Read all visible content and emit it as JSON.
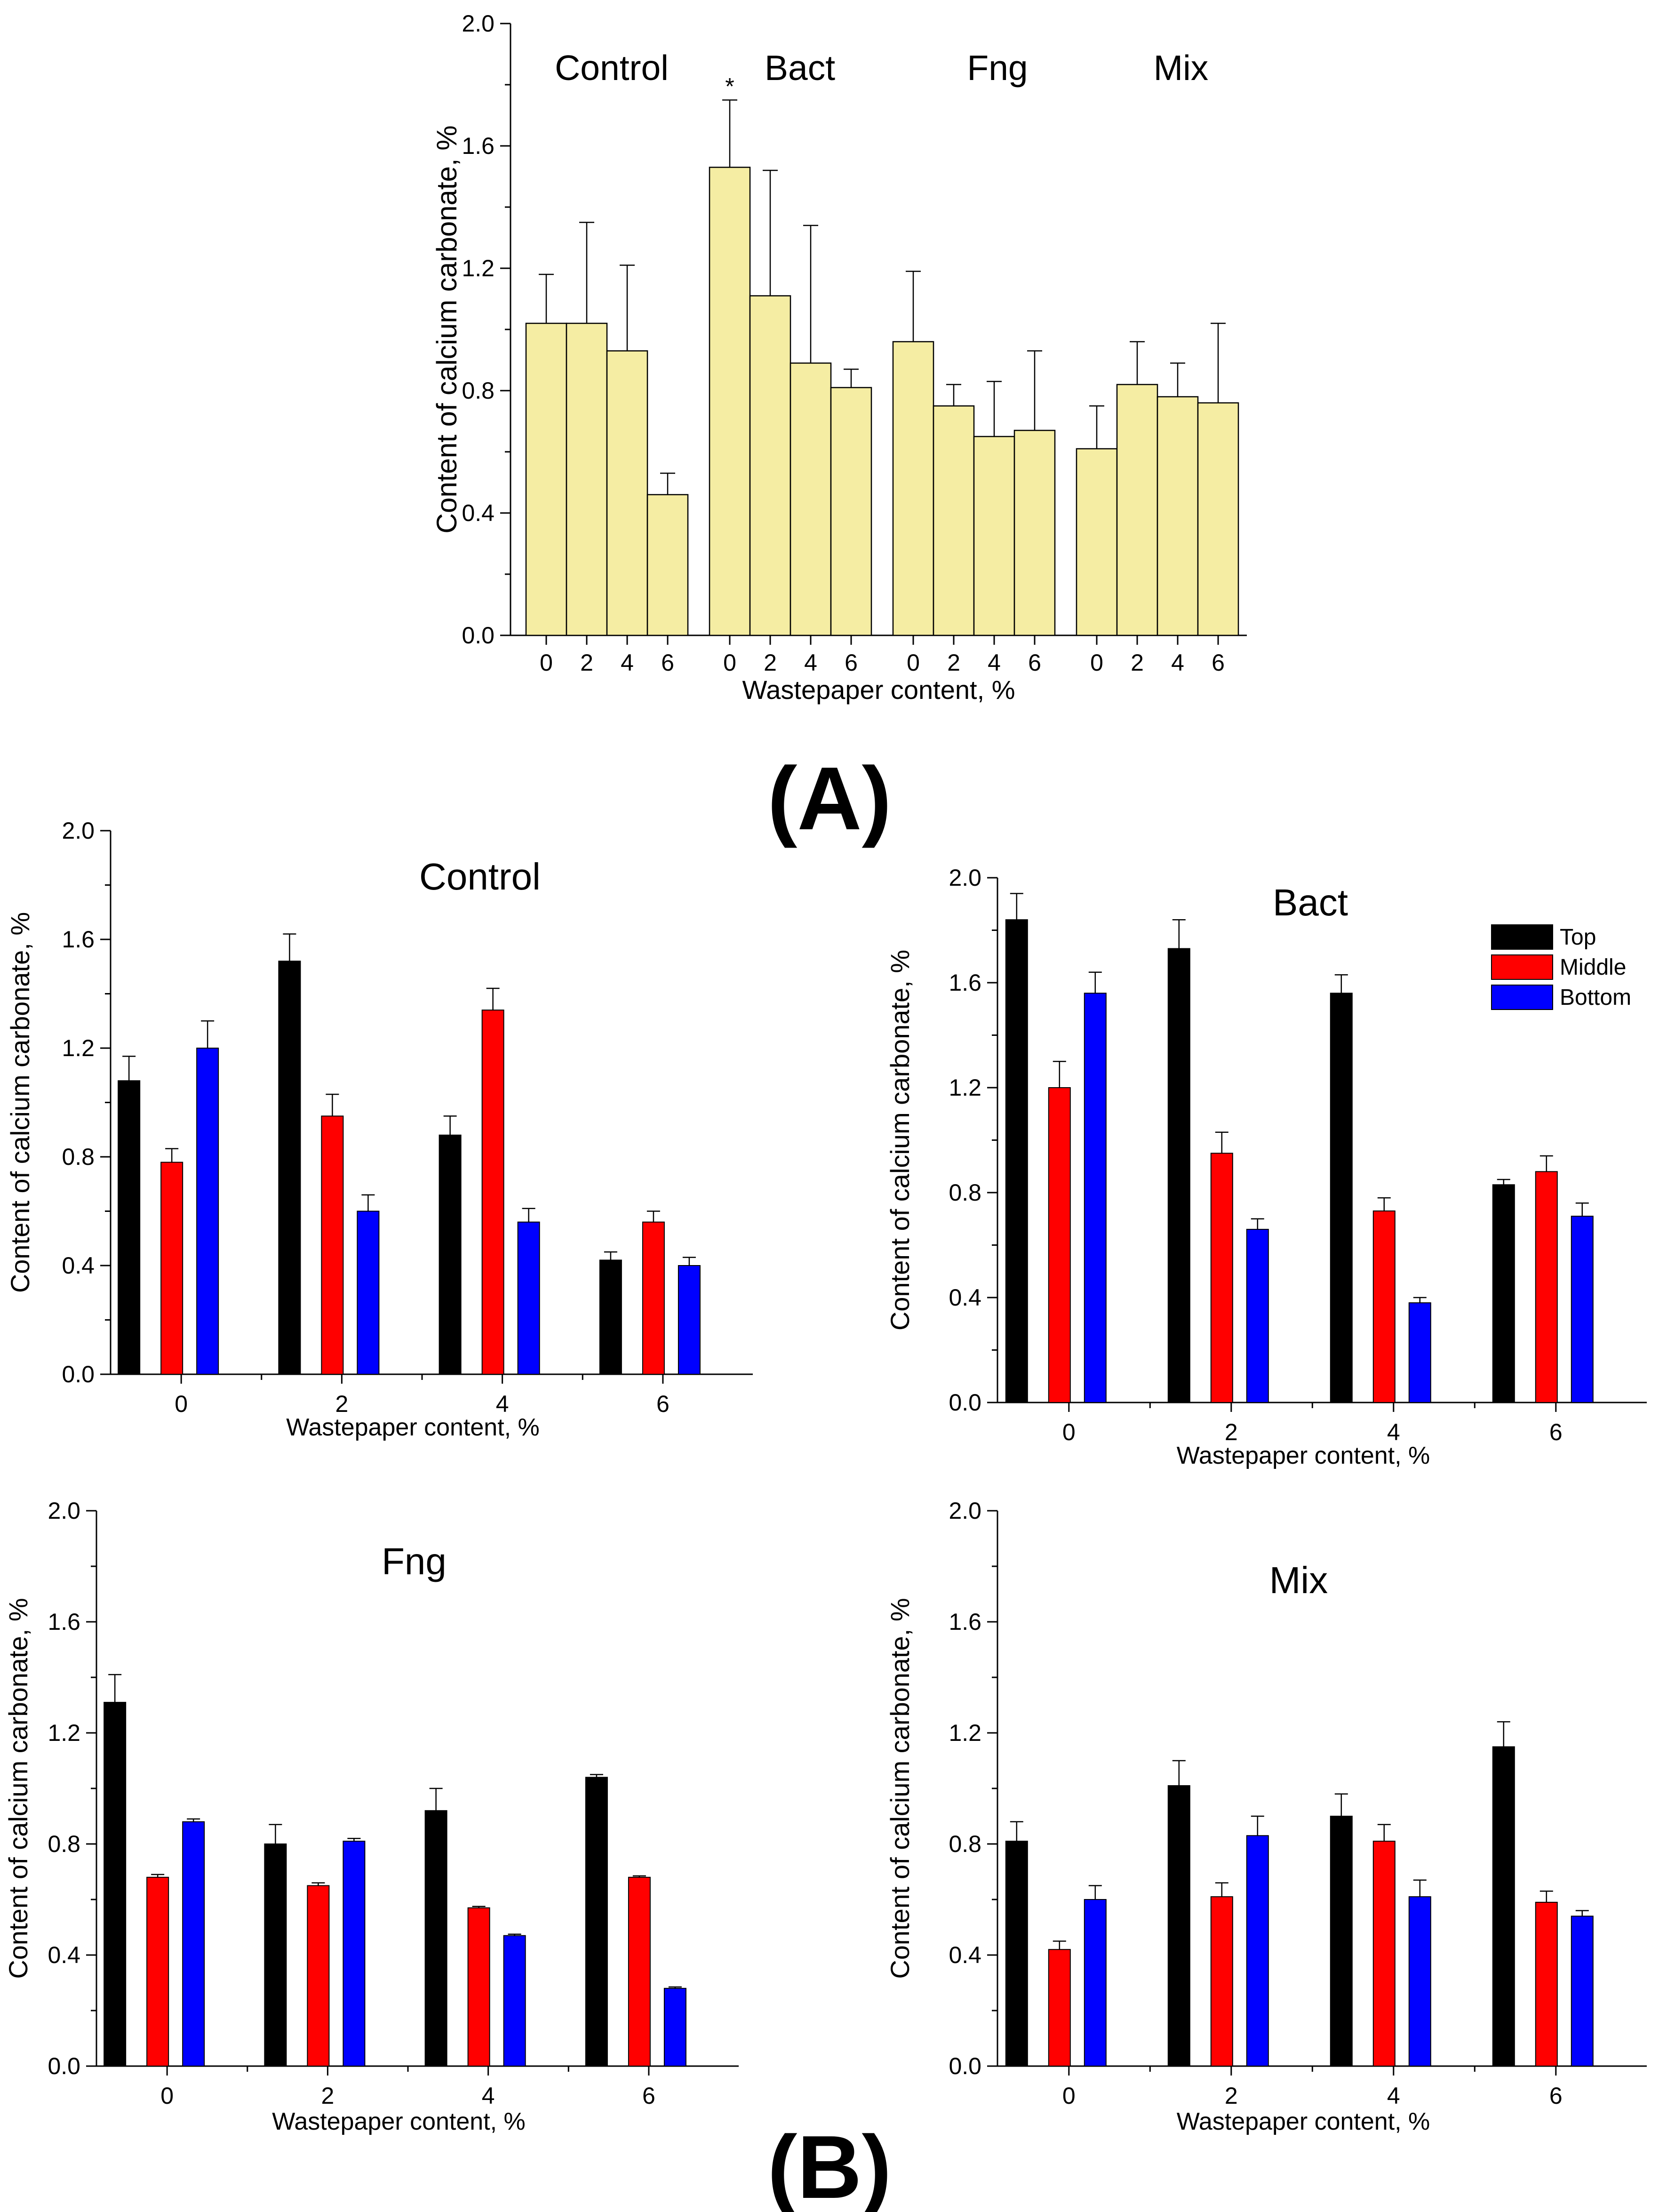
{
  "figure": {
    "panel_a_label": "(A)",
    "panel_b_label": "(B)"
  },
  "colors": {
    "single_bar": "#f5eda3",
    "top": "#000000",
    "middle": "#ff0000",
    "bottom": "#0000ff"
  },
  "chart_data": [
    {
      "id": "A",
      "type": "bar",
      "xlabel": "Wastepaper content, %",
      "ylabel": "Content of calcium carbonate, %",
      "ylim": [
        0,
        2.0
      ],
      "yticks": [
        "0.0",
        "0.4",
        "0.8",
        "1.2",
        "1.6",
        "2.0"
      ],
      "groups": [
        {
          "name": "Control",
          "categories": [
            "0",
            "2",
            "4",
            "6"
          ],
          "values": [
            1.02,
            1.02,
            0.93,
            0.46
          ],
          "errors": [
            0.16,
            0.33,
            0.28,
            0.07
          ],
          "annotations": [
            "",
            "",
            "",
            ""
          ]
        },
        {
          "name": "Bact",
          "categories": [
            "0",
            "2",
            "4",
            "6"
          ],
          "values": [
            1.53,
            1.11,
            0.89,
            0.81
          ],
          "errors": [
            0.22,
            0.41,
            0.45,
            0.06
          ],
          "annotations": [
            "*",
            "",
            "",
            ""
          ]
        },
        {
          "name": "Fng",
          "categories": [
            "0",
            "2",
            "4",
            "6"
          ],
          "values": [
            0.96,
            0.75,
            0.65,
            0.67
          ],
          "errors": [
            0.23,
            0.07,
            0.18,
            0.26
          ],
          "annotations": [
            "",
            "",
            "",
            ""
          ]
        },
        {
          "name": "Mix",
          "categories": [
            "0",
            "2",
            "4",
            "6"
          ],
          "values": [
            0.61,
            0.82,
            0.78,
            0.76
          ],
          "errors": [
            0.14,
            0.14,
            0.11,
            0.26
          ],
          "annotations": [
            "",
            "",
            "",
            ""
          ]
        }
      ]
    },
    {
      "id": "B-Control",
      "type": "bar",
      "title": "Control",
      "xlabel": "Wastepaper content, %",
      "ylabel": "Content of calcium carbonate, %",
      "ylim": [
        0,
        2.0
      ],
      "yticks": [
        "0.0",
        "0.4",
        "0.8",
        "1.2",
        "1.6",
        "2.0"
      ],
      "categories": [
        "0",
        "2",
        "4",
        "6"
      ],
      "series": [
        {
          "name": "Top",
          "values": [
            1.08,
            1.52,
            0.88,
            0.42
          ],
          "errors": [
            0.09,
            0.1,
            0.07,
            0.03
          ]
        },
        {
          "name": "Middle",
          "values": [
            0.78,
            0.95,
            1.34,
            0.56
          ],
          "errors": [
            0.05,
            0.08,
            0.08,
            0.04
          ]
        },
        {
          "name": "Bottom",
          "values": [
            1.2,
            0.6,
            0.56,
            0.4
          ],
          "errors": [
            0.1,
            0.06,
            0.05,
            0.03
          ]
        }
      ]
    },
    {
      "id": "B-Bact",
      "type": "bar",
      "title": "Bact",
      "xlabel": "Wastepaper content, %",
      "ylabel": "Content of calcium carbonate, %",
      "ylim": [
        0,
        2.0
      ],
      "yticks": [
        "0.0",
        "0.4",
        "0.8",
        "1.2",
        "1.6",
        "2.0"
      ],
      "categories": [
        "0",
        "2",
        "4",
        "6"
      ],
      "legend": [
        "Top",
        "Middle",
        "Bottom"
      ],
      "series": [
        {
          "name": "Top",
          "values": [
            1.84,
            1.73,
            1.56,
            0.83
          ],
          "errors": [
            0.1,
            0.11,
            0.07,
            0.02
          ]
        },
        {
          "name": "Middle",
          "values": [
            1.2,
            0.95,
            0.73,
            0.88
          ],
          "errors": [
            0.1,
            0.08,
            0.05,
            0.06
          ]
        },
        {
          "name": "Bottom",
          "values": [
            1.56,
            0.66,
            0.38,
            0.71
          ],
          "errors": [
            0.08,
            0.04,
            0.02,
            0.05
          ]
        }
      ]
    },
    {
      "id": "B-Fng",
      "type": "bar",
      "title": "Fng",
      "xlabel": "Wastepaper content, %",
      "ylabel": "Content of calcium carbonate, %",
      "ylim": [
        0,
        2.0
      ],
      "yticks": [
        "0.0",
        "0.4",
        "0.8",
        "1.2",
        "1.6",
        "2.0"
      ],
      "categories": [
        "0",
        "2",
        "4",
        "6"
      ],
      "series": [
        {
          "name": "Top",
          "values": [
            1.31,
            0.8,
            0.92,
            1.04
          ],
          "errors": [
            0.1,
            0.07,
            0.08,
            0.01
          ]
        },
        {
          "name": "Middle",
          "values": [
            0.68,
            0.65,
            0.57,
            0.68
          ],
          "errors": [
            0.01,
            0.01,
            0.005,
            0.005
          ]
        },
        {
          "name": "Bottom",
          "values": [
            0.88,
            0.81,
            0.47,
            0.28
          ],
          "errors": [
            0.01,
            0.01,
            0.005,
            0.005
          ]
        }
      ]
    },
    {
      "id": "B-Mix",
      "type": "bar",
      "title": "Mix",
      "xlabel": "Wastepaper content, %",
      "ylabel": "Content of calcium carbonate, %",
      "ylim": [
        0,
        2.0
      ],
      "yticks": [
        "0.0",
        "0.4",
        "0.8",
        "1.2",
        "1.6",
        "2.0"
      ],
      "categories": [
        "0",
        "2",
        "4",
        "6"
      ],
      "series": [
        {
          "name": "Top",
          "values": [
            0.81,
            1.01,
            0.9,
            1.15
          ],
          "errors": [
            0.07,
            0.09,
            0.08,
            0.09
          ]
        },
        {
          "name": "Middle",
          "values": [
            0.42,
            0.61,
            0.81,
            0.59
          ],
          "errors": [
            0.03,
            0.05,
            0.06,
            0.04
          ]
        },
        {
          "name": "Bottom",
          "values": [
            0.6,
            0.83,
            0.61,
            0.54
          ],
          "errors": [
            0.05,
            0.07,
            0.06,
            0.02
          ]
        }
      ]
    }
  ]
}
